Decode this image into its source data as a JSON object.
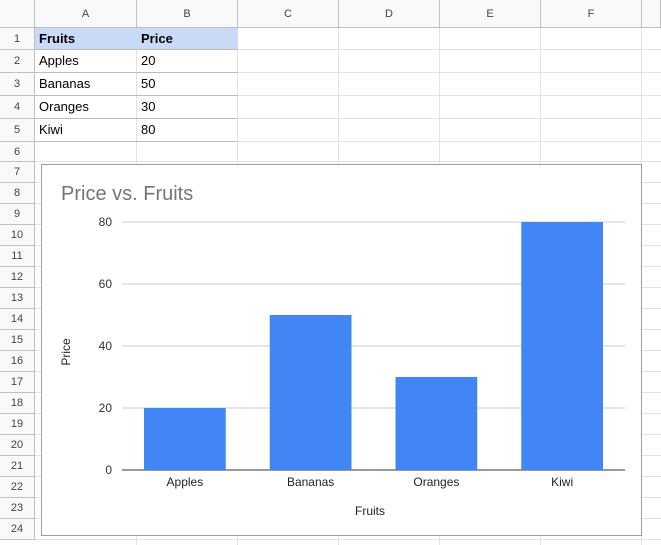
{
  "sheet": {
    "columns": [
      "A",
      "B",
      "C",
      "D",
      "E",
      "F"
    ],
    "rows": [
      "1",
      "2",
      "3",
      "4",
      "5",
      "6",
      "7",
      "8",
      "9",
      "10",
      "11",
      "12",
      "13",
      "14",
      "15",
      "16",
      "17",
      "18",
      "19",
      "20",
      "21",
      "22",
      "23",
      "24"
    ],
    "header": {
      "fruits": "Fruits",
      "price": "Price"
    },
    "data": [
      {
        "fruit": "Apples",
        "price": "20"
      },
      {
        "fruit": "Bananas",
        "price": "50"
      },
      {
        "fruit": "Oranges",
        "price": "30"
      },
      {
        "fruit": "Kiwi",
        "price": "80"
      }
    ]
  },
  "chart_data": {
    "type": "bar",
    "title": "Price vs. Fruits",
    "xlabel": "Fruits",
    "ylabel": "Price",
    "categories": [
      "Apples",
      "Bananas",
      "Oranges",
      "Kiwi"
    ],
    "values": [
      20,
      50,
      30,
      80
    ],
    "ylim": [
      0,
      80
    ],
    "yticks": [
      "0",
      "20",
      "40",
      "60",
      "80"
    ],
    "grid": true,
    "legend": "none",
    "colors": {
      "bar": "#4285f4",
      "title": "#757575",
      "gridline": "#cccccc",
      "axis": "#333333"
    }
  }
}
